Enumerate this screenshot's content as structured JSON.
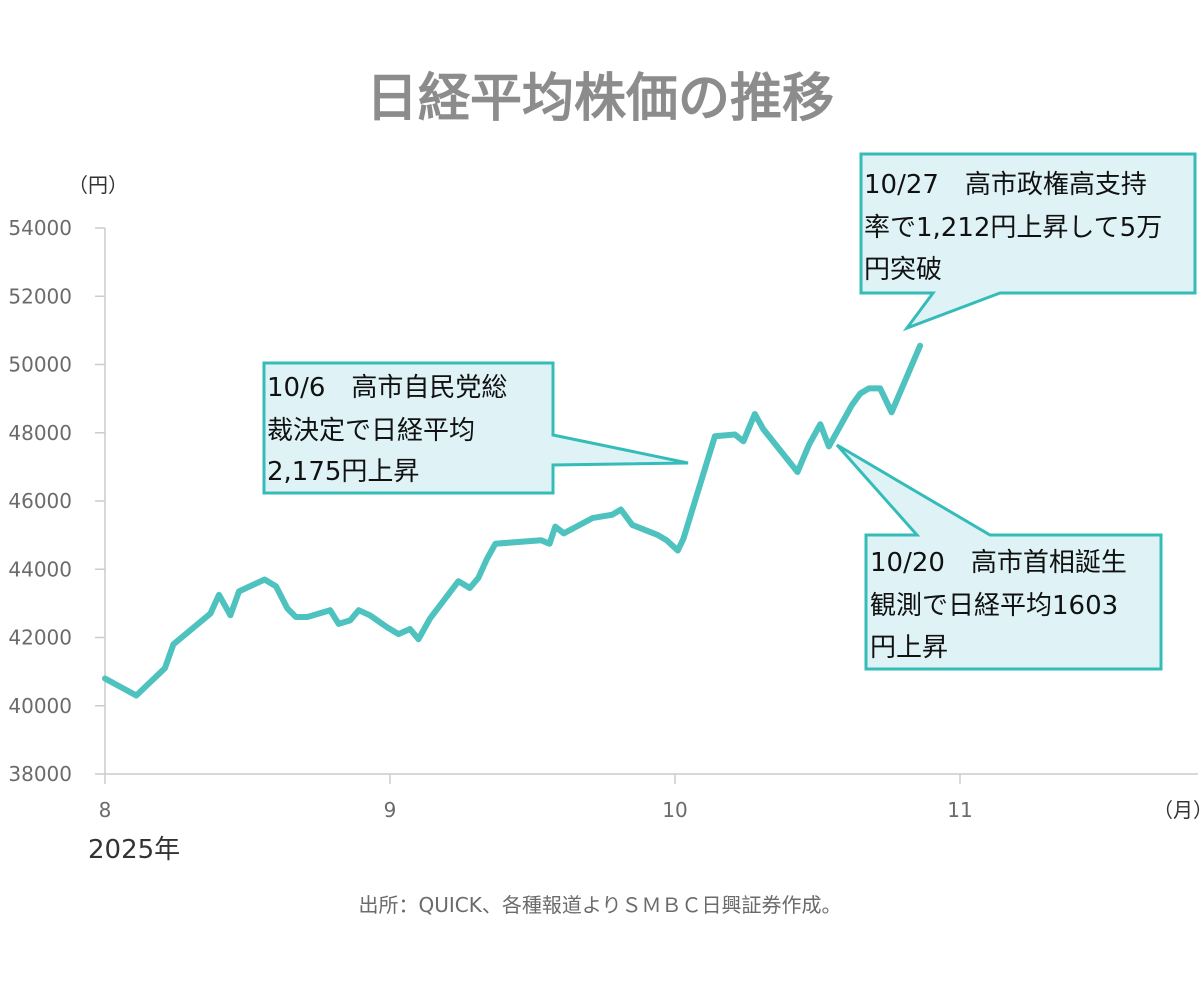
{
  "chart_data": {
    "type": "line",
    "title": "日経平均株価の推移",
    "ylabel": "（円）",
    "xlabel": "（月）",
    "year_label": "2025年",
    "source": "出所：QUICK、各種報道よりＳＭＢＣ日興証券作成。",
    "ylim": [
      38000,
      54000
    ],
    "yticks": [
      38000,
      40000,
      42000,
      44000,
      46000,
      48000,
      50000,
      52000,
      54000
    ],
    "xlim": [
      8,
      12
    ],
    "xticks": [
      {
        "value": 8,
        "label": "8"
      },
      {
        "value": 9,
        "label": "9"
      },
      {
        "value": 10,
        "label": "10"
      },
      {
        "value": 11,
        "label": "11"
      }
    ],
    "grid": false,
    "line_color": "#4dc2be",
    "series": [
      {
        "x": [
          8.0,
          8.11,
          8.21,
          8.24,
          8.37,
          8.4,
          8.44,
          8.47,
          8.56,
          8.6,
          8.64,
          8.67,
          8.71,
          8.79,
          8.82,
          8.86,
          8.89,
          8.93,
          8.99,
          9.03,
          9.07,
          9.1,
          9.14,
          9.24,
          9.28,
          9.31,
          9.34,
          9.37,
          9.45,
          9.53,
          9.56,
          9.58,
          9.61,
          9.71,
          9.78,
          9.81,
          9.85,
          9.94,
          9.97,
          10.01,
          10.03,
          10.07,
          10.14,
          10.21,
          10.24,
          10.28,
          10.31,
          10.43,
          10.47,
          10.51,
          10.54,
          10.62,
          10.65,
          10.68,
          10.72,
          10.76,
          10.86
        ],
        "y": [
          40800,
          40300,
          41100,
          41800,
          42700,
          43250,
          42650,
          43350,
          43700,
          43500,
          42850,
          42600,
          42600,
          42800,
          42400,
          42500,
          42800,
          42650,
          42300,
          42100,
          42250,
          41950,
          42550,
          43650,
          43450,
          43750,
          44300,
          44750,
          44800,
          44850,
          44750,
          45250,
          45050,
          45500,
          45600,
          45750,
          45300,
          45000,
          44850,
          44550,
          44900,
          46000,
          47900,
          47950,
          47750,
          48550,
          48100,
          46850,
          47650,
          48250,
          47600,
          48800,
          49150,
          49300,
          49300,
          48600,
          50550
        ]
      }
    ],
    "annotations": [
      {
        "lines": [
          "10/6　高市自民党総",
          "裁決定で日経平均",
          "2,175円上昇"
        ]
      },
      {
        "lines": [
          "10/20　高市首相誕生",
          "観測で日経平均1603",
          "円上昇"
        ]
      },
      {
        "lines": [
          "10/27　高市政権高支持",
          "率で1,212円上昇して5万",
          "円突破"
        ]
      }
    ]
  }
}
